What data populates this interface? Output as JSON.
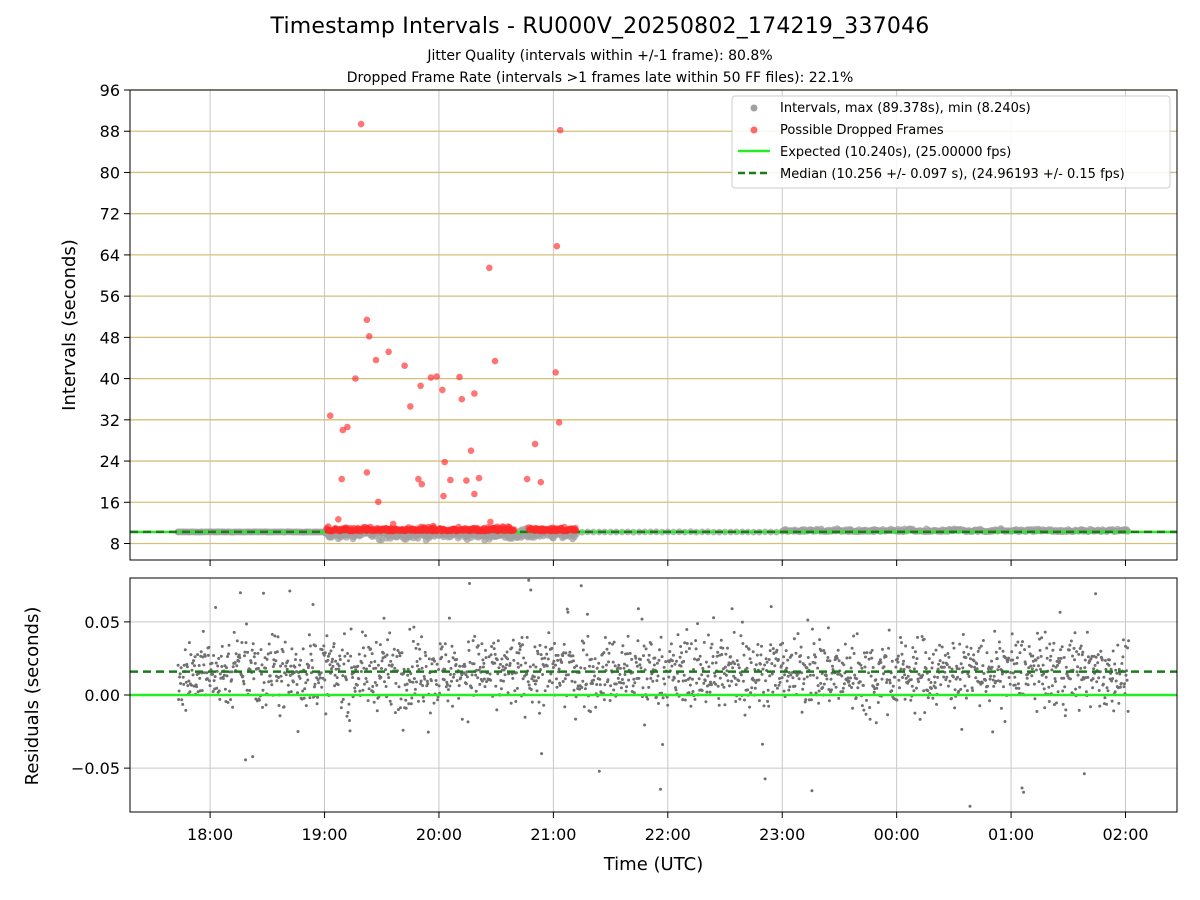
{
  "header": {
    "title": "Timestamp Intervals - RU000V_20250802_174219_337046",
    "subtitle1": "Jitter Quality (intervals within +/-1 frame): 80.8%",
    "subtitle2": "Dropped Frame Rate (intervals >1 frames late within 50 FF files): 22.1%"
  },
  "colors": {
    "intervals": "#a0a0a0",
    "dropped": "#ff2a2a",
    "expected": "#22ee22",
    "median": "#1b7a1b",
    "gold_grid": "#d4c07a",
    "grid": "#c8c8c8",
    "residual_points": "#707070"
  },
  "chart_data": [
    {
      "type": "scatter",
      "title": "Timestamp Intervals - RU000V_20250802_174219_337046",
      "xlabel": "",
      "ylabel": "Intervals (seconds)",
      "ylim": [
        4.8,
        96
      ],
      "yticks": [
        8,
        16,
        24,
        32,
        40,
        48,
        56,
        64,
        72,
        80,
        88,
        96
      ],
      "x_tick_labels": [
        "18:00",
        "19:00",
        "20:00",
        "21:00",
        "22:00",
        "23:00",
        "00:00",
        "01:00",
        "02:00"
      ],
      "x_range_hours": [
        17.3,
        26.45
      ],
      "grid": true,
      "legend_position": "top-right",
      "legend": [
        "Intervals, max (89.378s), min (8.240s)",
        "Possible Dropped Frames",
        "Expected (10.240s), (25.00000 fps)",
        "Median (10.256 +/- 0.097 s), (24.96193 +/- 0.15 fps)"
      ],
      "expected_y": 10.24,
      "median_y": 10.256,
      "series": [
        {
          "name": "Intervals, max (89.378s), min (8.240s)",
          "points": [
            [
              17.72,
              10.24
            ],
            [
              18.0,
              10.25
            ],
            [
              18.5,
              10.26
            ],
            [
              18.85,
              10.25
            ],
            [
              19.05,
              9.6
            ],
            [
              19.25,
              8.9
            ],
            [
              19.5,
              8.7
            ],
            [
              19.8,
              9.4
            ],
            [
              20.1,
              9.3
            ],
            [
              20.4,
              8.6
            ],
            [
              20.8,
              9.6
            ],
            [
              21.1,
              9.4
            ],
            [
              23.3,
              10.5
            ],
            [
              23.8,
              10.3
            ],
            [
              24.5,
              10.6
            ],
            [
              25.0,
              10.4
            ],
            [
              25.5,
              10.7
            ],
            [
              26.0,
              10.4
            ]
          ]
        },
        {
          "name": "Possible Dropped Frames",
          "points": [
            [
              19.32,
              89.378
            ],
            [
              19.37,
              51.4
            ],
            [
              19.39,
              48.2
            ],
            [
              19.45,
              43.6
            ],
            [
              19.56,
              45.2
            ],
            [
              19.27,
              40.0
            ],
            [
              19.05,
              32.8
            ],
            [
              19.16,
              30.0
            ],
            [
              19.2,
              30.6
            ],
            [
              19.37,
              21.8
            ],
            [
              19.15,
              20.5
            ],
            [
              19.47,
              16.1
            ],
            [
              19.7,
              42.5
            ],
            [
              19.84,
              38.6
            ],
            [
              19.93,
              40.2
            ],
            [
              19.98,
              40.4
            ],
            [
              20.03,
              37.8
            ],
            [
              19.75,
              34.6
            ],
            [
              20.18,
              40.3
            ],
            [
              20.2,
              36.0
            ],
            [
              20.31,
              37.1
            ],
            [
              20.44,
              61.5
            ],
            [
              20.49,
              43.4
            ],
            [
              20.28,
              26.0
            ],
            [
              20.05,
              23.8
            ],
            [
              20.1,
              20.3
            ],
            [
              20.24,
              20.2
            ],
            [
              20.35,
              20.7
            ],
            [
              19.82,
              20.5
            ],
            [
              19.85,
              19.5
            ],
            [
              20.04,
              17.2
            ],
            [
              20.31,
              17.6
            ],
            [
              20.84,
              27.3
            ],
            [
              20.77,
              20.5
            ],
            [
              20.89,
              19.9
            ],
            [
              21.06,
              88.2
            ],
            [
              21.03,
              65.7
            ],
            [
              21.02,
              41.2
            ],
            [
              21.05,
              31.5
            ],
            [
              19.6,
              11.8
            ],
            [
              19.95,
              11.4
            ],
            [
              20.45,
              12.2
            ],
            [
              19.12,
              12.7
            ],
            [
              19.4,
              11.2
            ],
            [
              20.9,
              10.9
            ]
          ]
        }
      ]
    },
    {
      "type": "scatter",
      "xlabel": "Time (UTC)",
      "ylabel": "Residuals (seconds)",
      "ylim": [
        -0.08,
        0.08
      ],
      "yticks": [
        -0.05,
        0.0,
        0.05
      ],
      "ytick_labels": [
        "−0.05",
        "0.00",
        "0.05"
      ],
      "x_tick_labels": [
        "18:00",
        "19:00",
        "20:00",
        "21:00",
        "22:00",
        "23:00",
        "00:00",
        "01:00",
        "02:00"
      ],
      "x_range_hours": [
        17.3,
        26.45
      ],
      "grid": true,
      "reference_lines": [
        {
          "name": "Expected",
          "y": 0.0
        },
        {
          "name": "Median",
          "y": 0.016
        }
      ],
      "residual_band": {
        "x_start_hours": 17.72,
        "x_end_hours": 26.03,
        "center": 0.016,
        "spread": 0.012
      }
    }
  ]
}
